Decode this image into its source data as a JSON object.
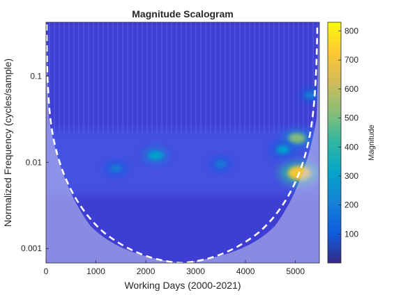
{
  "chart_data": {
    "type": "heatmap",
    "title": "Magnitude Scalogram",
    "xlabel": "Working Days (2000-2021)",
    "ylabel": "Normalized Frequency  (cycles/sample)",
    "xlim": [
      0,
      5480
    ],
    "ylim": [
      0.00068,
      0.42
    ],
    "y_scale": "log",
    "x_ticks": [
      0,
      1000,
      2000,
      3000,
      4000,
      5000
    ],
    "y_ticks": [
      0.001,
      0.01,
      0.1
    ],
    "y_tick_labels": [
      "0.001",
      "0.01",
      "0.1"
    ],
    "colorbar": {
      "label": "Magnitude",
      "range": [
        0,
        830
      ],
      "ticks": [
        100,
        200,
        300,
        400,
        500,
        600,
        700,
        800
      ],
      "colormap": "parula"
    },
    "cone_of_influence": "dashed white",
    "hotspots": [
      {
        "x": 5080,
        "y": 0.0075,
        "value": 800
      },
      {
        "x": 5030,
        "y": 0.019,
        "value": 520
      },
      {
        "x": 2200,
        "y": 0.012,
        "value": 380
      },
      {
        "x": 4750,
        "y": 0.014,
        "value": 340
      },
      {
        "x": 1400,
        "y": 0.0085,
        "value": 250
      },
      {
        "x": 3500,
        "y": 0.0095,
        "value": 220
      },
      {
        "x": 5300,
        "y": 0.06,
        "value": 260
      }
    ]
  }
}
